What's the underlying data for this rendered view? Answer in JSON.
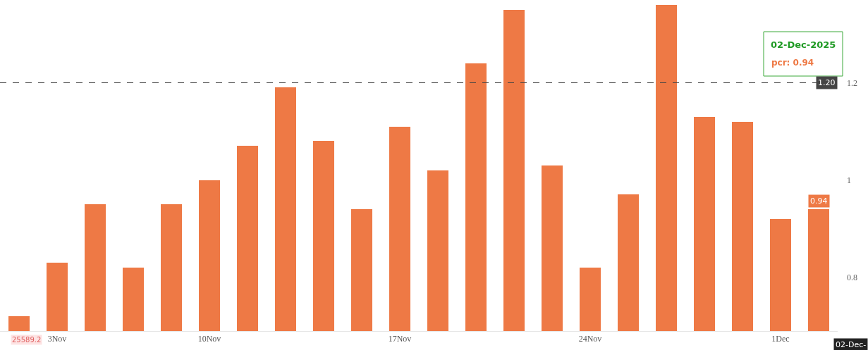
{
  "chart_data": {
    "type": "bar",
    "categories": [
      null,
      "3Nov",
      null,
      null,
      null,
      "10Nov",
      null,
      null,
      null,
      null,
      "17Nov",
      null,
      null,
      null,
      null,
      "24Nov",
      null,
      null,
      null,
      null,
      "1Dec",
      null
    ],
    "values": [
      0.72,
      0.83,
      0.95,
      0.82,
      0.95,
      1.0,
      1.07,
      1.19,
      1.08,
      0.94,
      1.11,
      1.02,
      1.24,
      1.35,
      1.03,
      0.82,
      0.97,
      1.36,
      1.13,
      1.12,
      0.92,
      0.94
    ],
    "color": "#ee7945",
    "value_labels": [
      null,
      null,
      null,
      null,
      null,
      null,
      null,
      null,
      null,
      null,
      null,
      null,
      null,
      null,
      null,
      null,
      null,
      null,
      null,
      null,
      null,
      "0.94"
    ],
    "ylim": [
      0.69,
      1.37
    ],
    "yticks": [
      0.8,
      1,
      1.2
    ],
    "ref_lines": [
      {
        "axis": "y",
        "value": 1.2,
        "label": "1.20",
        "color": "#444444",
        "line_style": "dashed"
      }
    ],
    "annotations": [
      "02-Dec-2025",
      "pcr: 0.94",
      "25589.2",
      "02-Dec-"
    ]
  }
}
